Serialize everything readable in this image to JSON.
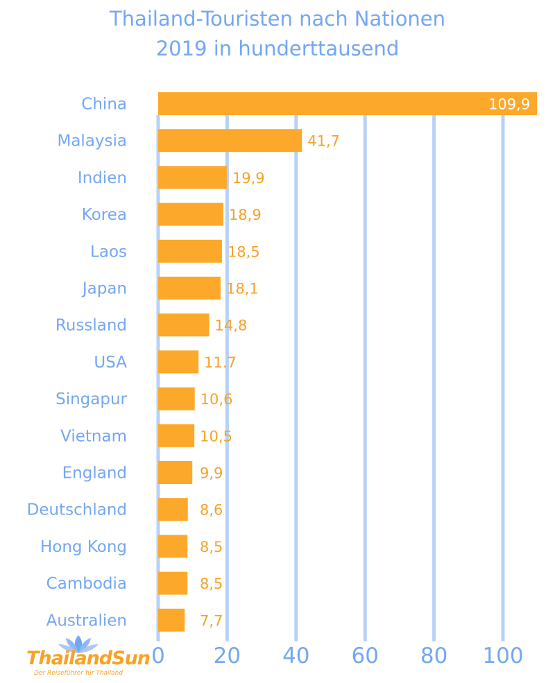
{
  "chart_data": {
    "type": "bar",
    "orientation": "horizontal",
    "title": "Thailand-Touristen nach Nationen",
    "subtitle": "2019 in hunderttausend",
    "categories": [
      "China",
      "Malaysia",
      "Indien",
      "Korea",
      "Laos",
      "Japan",
      "Russland",
      "USA",
      "Singapur",
      "Vietnam",
      "England",
      "Deutschland",
      "Hong Kong",
      "Cambodia",
      "Australien"
    ],
    "values": [
      109.9,
      41.7,
      19.9,
      18.9,
      18.5,
      18.1,
      14.8,
      11.7,
      10.6,
      10.5,
      9.9,
      8.6,
      8.5,
      8.5,
      7.7
    ],
    "value_labels": [
      "109,9",
      "41,7",
      "19,9",
      "18,9",
      "18,5",
      "18,1",
      "14,8",
      "11.7",
      "10,6",
      "10,5",
      "9,9",
      "8,6",
      "8,5",
      "8,5",
      "7,7"
    ],
    "x_ticks": [
      "0",
      "20",
      "40",
      "60",
      "80",
      "100"
    ],
    "xlim": [
      0,
      107
    ],
    "grid": "vertical",
    "legend": "none",
    "colors": {
      "bar": "#fca82b",
      "text": "#74a7f2",
      "grid": "#b7d2f8",
      "value_label": "#f7a227",
      "value_label_inside": "#ffffff"
    }
  },
  "logo": {
    "name": "ThailandSun",
    "tagline": "Der Reiseführer für Thailand",
    "icon": "lotus-icon"
  }
}
